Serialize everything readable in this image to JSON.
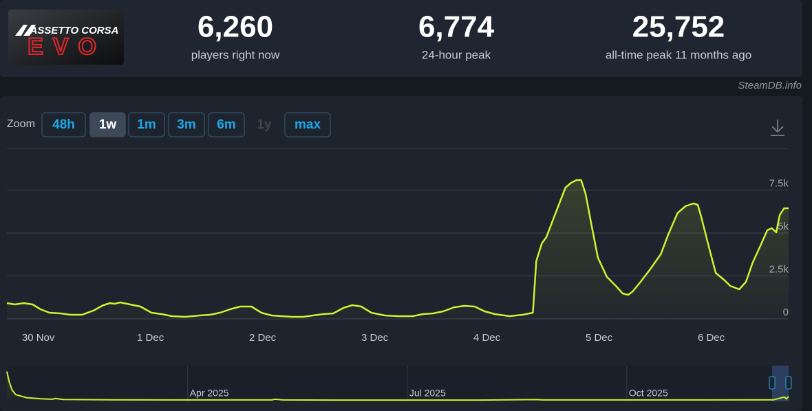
{
  "logo": {
    "brand": "ASSETTO CORSA",
    "product": "EVO"
  },
  "stats": [
    {
      "value": "6,260",
      "label": "players right now"
    },
    {
      "value": "6,774",
      "label": "24-hour peak"
    },
    {
      "value": "25,752",
      "label": "all-time peak 11 months ago"
    }
  ],
  "source": "SteamDB.info",
  "zoom": {
    "label": "Zoom",
    "options": [
      "48h",
      "1w",
      "1m",
      "3m",
      "6m",
      "1y",
      "max"
    ],
    "active": "1w",
    "disabled": [
      "1y"
    ]
  },
  "chart_data": [
    {
      "type": "line",
      "color": "#c8f532",
      "grid": true,
      "x": [
        -0.28,
        -0.21,
        -0.13,
        -0.05,
        0.02,
        0.1,
        0.2,
        0.29,
        0.39,
        0.49,
        0.58,
        0.64,
        0.68,
        0.73,
        0.82,
        0.91,
        1.01,
        1.1,
        1.19,
        1.31,
        1.44,
        1.53,
        1.62,
        1.71,
        1.8,
        1.9,
        1.99,
        2.08,
        2.17,
        2.26,
        2.36,
        2.45,
        2.54,
        2.63,
        2.72,
        2.8,
        2.88,
        2.97,
        3.09,
        3.21,
        3.34,
        3.43,
        3.52,
        3.61,
        3.71,
        3.8,
        3.89,
        3.98,
        4.07,
        4.2,
        4.32,
        4.41,
        4.44,
        4.49,
        4.53,
        4.61,
        4.7,
        4.75,
        4.8,
        4.84,
        4.88,
        4.93,
        4.99,
        5.07,
        5.15,
        5.21,
        5.26,
        5.3,
        5.37,
        5.45,
        5.55,
        5.62,
        5.7,
        5.77,
        5.84,
        5.88,
        5.91,
        5.98,
        6.04,
        6.12,
        6.17,
        6.25,
        6.31,
        6.37,
        6.44,
        6.5,
        6.54,
        6.58,
        6.61,
        6.65,
        6.69
      ],
      "values": [
        920,
        840,
        920,
        840,
        560,
        360,
        320,
        240,
        240,
        480,
        800,
        920,
        880,
        960,
        840,
        720,
        360,
        280,
        160,
        120,
        200,
        240,
        360,
        560,
        720,
        720,
        360,
        200,
        160,
        120,
        120,
        200,
        280,
        320,
        640,
        800,
        720,
        360,
        200,
        160,
        160,
        280,
        320,
        440,
        680,
        760,
        720,
        440,
        280,
        160,
        240,
        360,
        3360,
        4400,
        4760,
        6120,
        7640,
        7920,
        8080,
        8080,
        7280,
        5560,
        3560,
        2440,
        1920,
        1480,
        1400,
        1600,
        2160,
        2840,
        3760,
        4960,
        6160,
        6560,
        6720,
        6640,
        5960,
        4160,
        2680,
        2240,
        1920,
        1720,
        2160,
        3280,
        4280,
        5160,
        5280,
        5040,
        6040,
        6440,
        6440
      ],
      "xlim": [
        -0.28,
        6.69
      ],
      "xticks": [
        {
          "value": 0,
          "label": "30 Nov"
        },
        {
          "value": 1,
          "label": "1 Dec"
        },
        {
          "value": 2,
          "label": "2 Dec"
        },
        {
          "value": 3,
          "label": "3 Dec"
        },
        {
          "value": 4,
          "label": "4 Dec"
        },
        {
          "value": 5,
          "label": "5 Dec"
        },
        {
          "value": 6,
          "label": "6 Dec"
        }
      ],
      "ylim": [
        0,
        10000
      ],
      "yticks": [
        0,
        {
          "value": 2500,
          "label": "2.5k"
        },
        {
          "value": 5000,
          "label": "5k"
        },
        {
          "value": 7500,
          "label": "7.5k"
        }
      ]
    },
    {
      "type": "line",
      "color": "#c8f532",
      "x": [
        1.53,
        1.56,
        1.6,
        1.65,
        1.8,
        2.0,
        2.15,
        2.19,
        2.3,
        3.0,
        4.0,
        5.15,
        5.19,
        5.3,
        6.0,
        7.0,
        8.0,
        8.77,
        8.85,
        10.0,
        11.0,
        12.0,
        12.15,
        12.18,
        12.21
      ],
      "values": [
        24000,
        16000,
        9000,
        5000,
        2500,
        1500,
        1200,
        1800,
        1000,
        700,
        600,
        600,
        1200,
        600,
        500,
        500,
        500,
        900,
        600,
        600,
        600,
        700,
        3000,
        1500,
        3500
      ],
      "xlim": [
        1.53,
        12.21
      ],
      "xticks": [
        {
          "value": 4,
          "label": "Apr 2025"
        },
        {
          "value": 7,
          "label": "Jul 2025"
        },
        {
          "value": 10,
          "label": "Oct 2025"
        }
      ],
      "ylim": [
        0,
        26000
      ]
    }
  ]
}
